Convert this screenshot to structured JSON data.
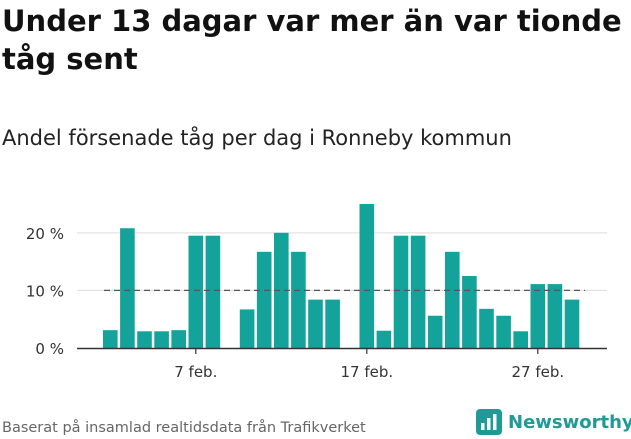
{
  "title": "Under 13 dagar var mer än var tionde tåg sent",
  "subtitle": "Andel försenade tåg per dag i Ronneby kommun",
  "source": "Baserat på insamlad realtidsdata från Trafikverket",
  "brand": {
    "name": "Newsworthy",
    "icon": "newsworthy-logo-icon"
  },
  "colors": {
    "bar": "#14a39a",
    "grid": "#dddddd",
    "reference": "#555555",
    "axis": "#333333",
    "brand": "#1e9a97"
  },
  "chart_data": {
    "type": "bar",
    "x_type": "date",
    "dates": [
      "2020-02-02",
      "2020-02-03",
      "2020-02-04",
      "2020-02-05",
      "2020-02-06",
      "2020-02-07",
      "2020-02-08",
      "2020-02-09",
      "2020-02-10",
      "2020-02-11",
      "2020-02-12",
      "2020-02-13",
      "2020-02-14",
      "2020-02-15",
      "2020-02-16",
      "2020-02-17",
      "2020-02-18",
      "2020-02-19",
      "2020-02-20",
      "2020-02-21",
      "2020-02-22",
      "2020-02-23",
      "2020-02-24",
      "2020-02-25",
      "2020-02-26",
      "2020-02-27",
      "2020-02-28",
      "2020-02-29"
    ],
    "values": [
      3.1,
      20.8,
      2.9,
      2.9,
      3.1,
      19.5,
      19.5,
      null,
      6.7,
      16.7,
      20.0,
      16.7,
      8.4,
      8.4,
      null,
      25.0,
      3.0,
      19.5,
      19.5,
      5.6,
      16.7,
      12.5,
      6.8,
      5.6,
      2.9,
      11.1,
      11.1,
      8.4
    ],
    "unit": "%",
    "reference_line": 10,
    "yticks": [
      0,
      10,
      20
    ],
    "ytick_labels": [
      "0 %",
      "10 %",
      "20 %"
    ],
    "xticks": [
      "2020-02-07",
      "2020-02-17",
      "2020-02-27"
    ],
    "xtick_labels": [
      "7 feb.",
      "17 feb.",
      "27 feb."
    ],
    "ylim": [
      0,
      25.7
    ],
    "grid": true,
    "legend": "none"
  }
}
